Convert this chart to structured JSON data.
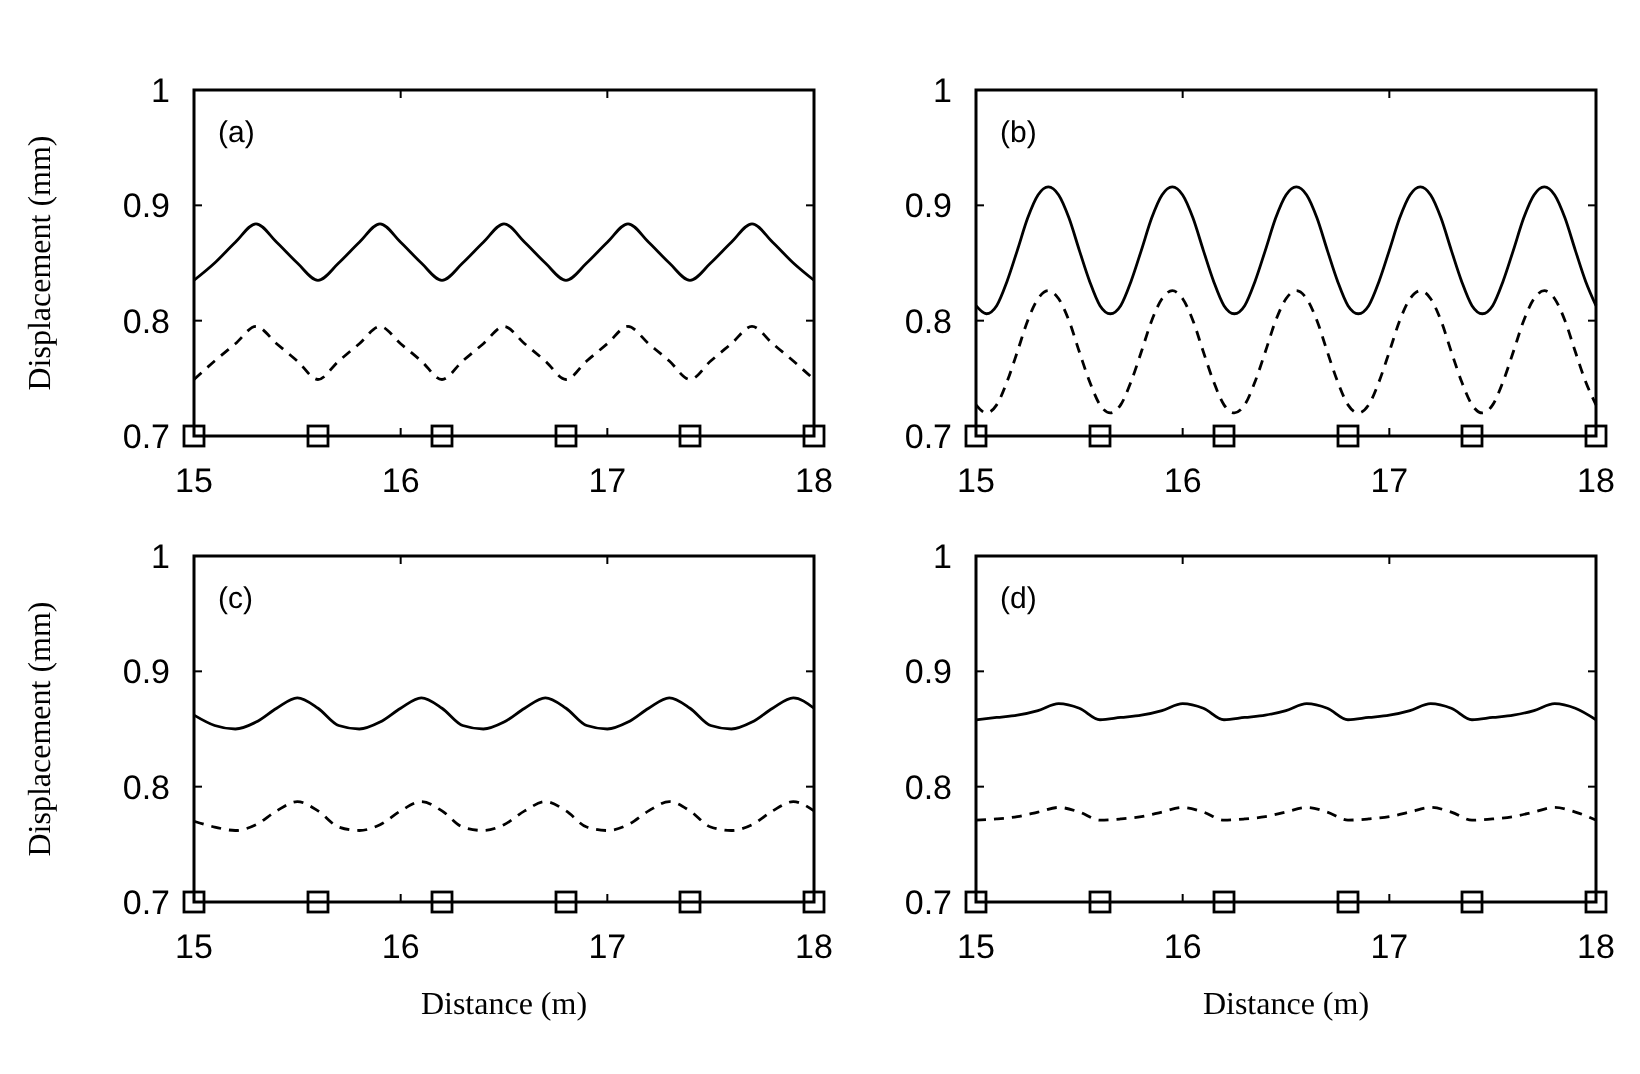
{
  "chart_data": [
    {
      "type": "line",
      "ylabel": "Displacement (mm)",
      "annotations": [
        "(a)"
      ],
      "xlim": [
        15,
        18
      ],
      "ylim": [
        0.7,
        1
      ],
      "xticks": [
        15,
        16,
        17,
        18
      ],
      "yticks": [
        0.7,
        0.8,
        0.9,
        1
      ],
      "x": [
        15,
        15.1,
        15.2,
        15.3,
        15.4,
        15.5,
        15.6,
        15.7,
        15.8,
        15.9,
        16,
        16.1,
        16.2,
        16.3,
        16.4,
        16.5,
        16.6,
        16.7,
        16.8,
        16.9,
        17,
        17.1,
        17.2,
        17.3,
        17.4,
        17.5,
        17.6,
        17.7,
        17.8,
        17.9,
        18
      ],
      "series": [
        {
          "type": "line",
          "color": "#000000",
          "line_style": "solid",
          "values": [
            0.835,
            0.85,
            0.868,
            0.884,
            0.868,
            0.85,
            0.835,
            0.85,
            0.868,
            0.884,
            0.868,
            0.85,
            0.835,
            0.85,
            0.868,
            0.884,
            0.868,
            0.85,
            0.835,
            0.85,
            0.868,
            0.884,
            0.868,
            0.85,
            0.835,
            0.85,
            0.868,
            0.884,
            0.868,
            0.85,
            0.835
          ]
        },
        {
          "type": "line",
          "color": "#000000",
          "line_style": "dashed",
          "values": [
            0.749,
            0.765,
            0.78,
            0.795,
            0.78,
            0.765,
            0.749,
            0.765,
            0.78,
            0.795,
            0.78,
            0.765,
            0.749,
            0.765,
            0.78,
            0.795,
            0.78,
            0.765,
            0.749,
            0.765,
            0.78,
            0.795,
            0.78,
            0.765,
            0.749,
            0.765,
            0.78,
            0.795,
            0.78,
            0.765,
            0.749
          ]
        },
        {
          "type": "scatter",
          "color": "#000000",
          "marker": "square",
          "x": [
            15,
            15.6,
            16.2,
            16.8,
            17.4,
            18
          ],
          "values": [
            0.7,
            0.7,
            0.7,
            0.7,
            0.7,
            0.7
          ]
        }
      ]
    },
    {
      "type": "line",
      "annotations": [
        "(b)"
      ],
      "xlim": [
        15,
        18
      ],
      "ylim": [
        0.7,
        1
      ],
      "xticks": [
        15,
        16,
        17,
        18
      ],
      "yticks": [
        0.7,
        0.8,
        0.9,
        1
      ],
      "x": [
        15,
        15.05,
        15.1,
        15.15,
        15.2,
        15.25,
        15.3,
        15.35,
        15.4,
        15.45,
        15.5,
        15.55,
        15.6,
        15.65,
        15.7,
        15.75,
        15.8,
        15.85,
        15.9,
        15.95,
        16,
        16.05,
        16.1,
        16.15,
        16.2,
        16.25,
        16.3,
        16.35,
        16.4,
        16.45,
        16.5,
        16.55,
        16.6,
        16.65,
        16.7,
        16.75,
        16.8,
        16.85,
        16.9,
        16.95,
        17,
        17.05,
        17.1,
        17.15,
        17.2,
        17.25,
        17.3,
        17.35,
        17.4,
        17.45,
        17.5,
        17.55,
        17.6,
        17.65,
        17.7,
        17.75,
        17.8,
        17.85,
        17.9,
        17.95,
        18
      ],
      "series": [
        {
          "type": "line",
          "color": "#000000",
          "line_style": "solid",
          "values": [
            0.813,
            0.806,
            0.813,
            0.834,
            0.861,
            0.889,
            0.909,
            0.916,
            0.909,
            0.889,
            0.861,
            0.834,
            0.813,
            0.806,
            0.813,
            0.834,
            0.861,
            0.889,
            0.909,
            0.916,
            0.909,
            0.889,
            0.861,
            0.834,
            0.813,
            0.806,
            0.813,
            0.834,
            0.861,
            0.889,
            0.909,
            0.916,
            0.909,
            0.889,
            0.861,
            0.834,
            0.813,
            0.806,
            0.813,
            0.834,
            0.861,
            0.889,
            0.909,
            0.916,
            0.909,
            0.889,
            0.861,
            0.834,
            0.813,
            0.806,
            0.813,
            0.834,
            0.861,
            0.889,
            0.909,
            0.916,
            0.909,
            0.889,
            0.861,
            0.834,
            0.813
          ]
        },
        {
          "type": "line",
          "color": "#000000",
          "line_style": "dashed",
          "values": [
            0.727,
            0.72,
            0.727,
            0.747,
            0.773,
            0.8,
            0.819,
            0.826,
            0.819,
            0.8,
            0.773,
            0.747,
            0.727,
            0.72,
            0.727,
            0.747,
            0.773,
            0.8,
            0.819,
            0.826,
            0.819,
            0.8,
            0.773,
            0.747,
            0.727,
            0.72,
            0.727,
            0.747,
            0.773,
            0.8,
            0.819,
            0.826,
            0.819,
            0.8,
            0.773,
            0.747,
            0.727,
            0.72,
            0.727,
            0.747,
            0.773,
            0.8,
            0.819,
            0.826,
            0.819,
            0.8,
            0.773,
            0.747,
            0.727,
            0.72,
            0.727,
            0.747,
            0.773,
            0.8,
            0.819,
            0.826,
            0.819,
            0.8,
            0.773,
            0.747,
            0.727
          ]
        },
        {
          "type": "scatter",
          "color": "#000000",
          "marker": "square",
          "x": [
            15,
            15.6,
            16.2,
            16.8,
            17.4,
            18
          ],
          "values": [
            0.7,
            0.7,
            0.7,
            0.7,
            0.7,
            0.7
          ]
        }
      ]
    },
    {
      "type": "line",
      "xlabel": "Distance (m)",
      "ylabel": "Displacement (mm)",
      "annotations": [
        "(c)"
      ],
      "xlim": [
        15,
        18
      ],
      "ylim": [
        0.7,
        1
      ],
      "xticks": [
        15,
        16,
        17,
        18
      ],
      "yticks": [
        0.7,
        0.8,
        0.9,
        1
      ],
      "x": [
        15,
        15.1,
        15.2,
        15.3,
        15.4,
        15.5,
        15.6,
        15.7,
        15.8,
        15.9,
        16,
        16.1,
        16.2,
        16.3,
        16.4,
        16.5,
        16.6,
        16.7,
        16.8,
        16.9,
        17,
        17.1,
        17.2,
        17.3,
        17.4,
        17.5,
        17.6,
        17.7,
        17.8,
        17.9,
        18
      ],
      "series": [
        {
          "type": "line",
          "color": "#000000",
          "line_style": "solid",
          "values": [
            0.862,
            0.853,
            0.85,
            0.856,
            0.868,
            0.877,
            0.868,
            0.853,
            0.85,
            0.856,
            0.868,
            0.877,
            0.868,
            0.853,
            0.85,
            0.856,
            0.868,
            0.877,
            0.868,
            0.853,
            0.85,
            0.856,
            0.868,
            0.877,
            0.868,
            0.853,
            0.85,
            0.856,
            0.868,
            0.877,
            0.868
          ]
        },
        {
          "type": "line",
          "color": "#000000",
          "line_style": "dashed",
          "values": [
            0.77,
            0.765,
            0.762,
            0.767,
            0.779,
            0.787,
            0.779,
            0.765,
            0.762,
            0.767,
            0.779,
            0.787,
            0.779,
            0.765,
            0.762,
            0.767,
            0.779,
            0.787,
            0.779,
            0.765,
            0.762,
            0.767,
            0.779,
            0.787,
            0.779,
            0.765,
            0.762,
            0.767,
            0.779,
            0.787,
            0.779
          ]
        },
        {
          "type": "scatter",
          "color": "#000000",
          "marker": "square",
          "x": [
            15,
            15.6,
            16.2,
            16.8,
            17.4,
            18
          ],
          "values": [
            0.7,
            0.7,
            0.7,
            0.7,
            0.7,
            0.7
          ]
        }
      ]
    },
    {
      "type": "line",
      "xlabel": "Distance (m)",
      "annotations": [
        "(d)"
      ],
      "xlim": [
        15,
        18
      ],
      "ylim": [
        0.7,
        1
      ],
      "xticks": [
        15,
        16,
        17,
        18
      ],
      "yticks": [
        0.7,
        0.8,
        0.9,
        1
      ],
      "x": [
        15,
        15.1,
        15.2,
        15.3,
        15.4,
        15.5,
        15.6,
        15.7,
        15.8,
        15.9,
        16,
        16.1,
        16.2,
        16.3,
        16.4,
        16.5,
        16.6,
        16.7,
        16.8,
        16.9,
        17,
        17.1,
        17.2,
        17.3,
        17.4,
        17.5,
        17.6,
        17.7,
        17.8,
        17.9,
        18
      ],
      "series": [
        {
          "type": "line",
          "color": "#000000",
          "line_style": "solid",
          "values": [
            0.858,
            0.86,
            0.862,
            0.866,
            0.872,
            0.868,
            0.858,
            0.86,
            0.862,
            0.866,
            0.872,
            0.868,
            0.858,
            0.86,
            0.862,
            0.866,
            0.872,
            0.868,
            0.858,
            0.86,
            0.862,
            0.866,
            0.872,
            0.868,
            0.858,
            0.86,
            0.862,
            0.866,
            0.872,
            0.868,
            0.858
          ]
        },
        {
          "type": "line",
          "color": "#000000",
          "line_style": "dashed",
          "values": [
            0.771,
            0.772,
            0.774,
            0.778,
            0.782,
            0.778,
            0.771,
            0.772,
            0.774,
            0.778,
            0.782,
            0.778,
            0.771,
            0.772,
            0.774,
            0.778,
            0.782,
            0.778,
            0.771,
            0.772,
            0.774,
            0.778,
            0.782,
            0.778,
            0.771,
            0.772,
            0.774,
            0.778,
            0.782,
            0.778,
            0.771
          ]
        },
        {
          "type": "scatter",
          "color": "#000000",
          "marker": "square",
          "x": [
            15,
            15.6,
            16.2,
            16.8,
            17.4,
            18
          ],
          "values": [
            0.7,
            0.7,
            0.7,
            0.7,
            0.7,
            0.7
          ]
        }
      ]
    }
  ]
}
